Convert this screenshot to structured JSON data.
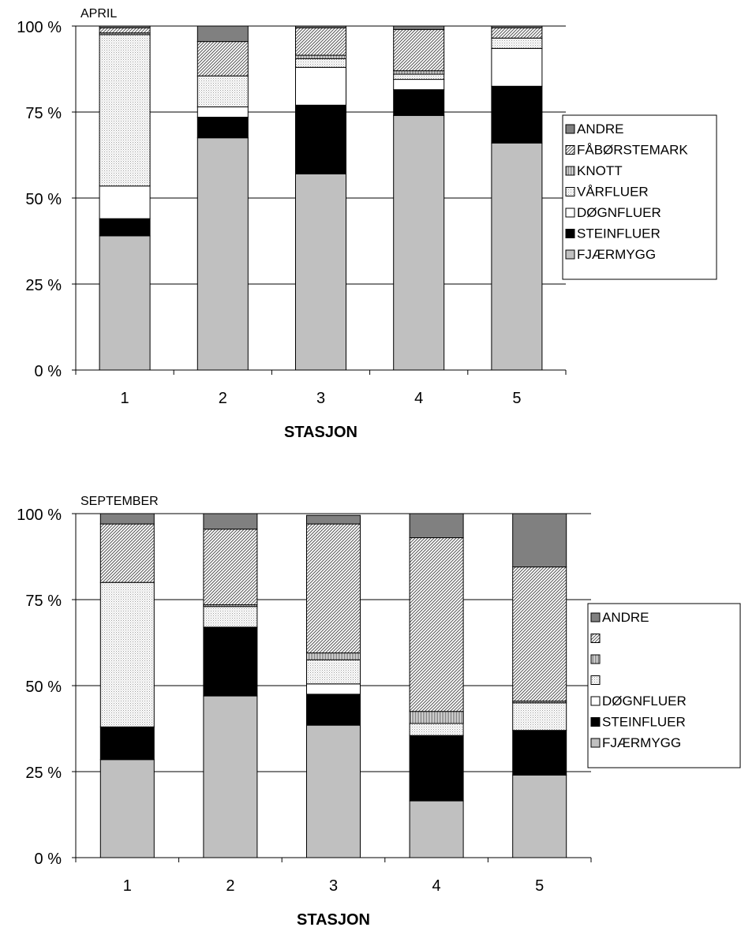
{
  "chart_data": [
    {
      "type": "bar",
      "stacked": true,
      "percent": true,
      "title": "APRIL",
      "xlabel": "STASJON",
      "ylabel": "",
      "categories": [
        "1",
        "2",
        "3",
        "4",
        "5"
      ],
      "ylim": [
        0,
        100
      ],
      "yticks": [
        "0 %",
        "25 %",
        "50 %",
        "75 %",
        "100 %"
      ],
      "grid": true,
      "legend": "right",
      "series": [
        {
          "name": "FJÆRMYGG",
          "pattern": "grey",
          "values": [
            39,
            67.5,
            57,
            74,
            66
          ]
        },
        {
          "name": "STEINFLUER",
          "pattern": "black",
          "values": [
            5,
            6,
            20,
            7.5,
            16.5
          ]
        },
        {
          "name": "DØGNFLUER",
          "pattern": "white",
          "values": [
            9.5,
            3,
            11,
            3,
            11
          ]
        },
        {
          "name": "VÅRFLUER",
          "pattern": "dots",
          "values": [
            44,
            9,
            2.5,
            1.5,
            3
          ]
        },
        {
          "name": "KNOTT",
          "pattern": "vlines",
          "values": [
            0.5,
            0,
            1,
            1,
            0
          ]
        },
        {
          "name": "FÅBØRSTEMARK",
          "pattern": "diag",
          "values": [
            1.5,
            10,
            8,
            12,
            3
          ]
        },
        {
          "name": "ANDRE",
          "pattern": "dark",
          "values": [
            0.5,
            4.5,
            0.5,
            1,
            0.5
          ]
        }
      ]
    },
    {
      "type": "bar",
      "stacked": true,
      "percent": true,
      "title": "SEPTEMBER",
      "xlabel": "STASJON",
      "ylabel": "",
      "categories": [
        "1",
        "2",
        "3",
        "4",
        "5"
      ],
      "ylim": [
        0,
        100
      ],
      "yticks": [
        "0 %",
        "25 %",
        "50 %",
        "75 %",
        "100 %"
      ],
      "grid": true,
      "legend": "right",
      "series": [
        {
          "name": "FJÆRMYGG",
          "pattern": "grey",
          "values": [
            28.5,
            47,
            38.5,
            16.5,
            24
          ]
        },
        {
          "name": "STEINFLUER",
          "pattern": "black",
          "values": [
            9.5,
            20,
            9,
            19,
            13
          ]
        },
        {
          "name": "DØGNFLUER",
          "pattern": "white",
          "values": [
            0,
            0,
            3,
            0,
            0
          ]
        },
        {
          "name": "",
          "pattern": "dots",
          "values": [
            42,
            6,
            7,
            3.5,
            8
          ]
        },
        {
          "name": "",
          "pattern": "vlines",
          "values": [
            0,
            0.5,
            2,
            3.5,
            0.5
          ]
        },
        {
          "name": "",
          "pattern": "diag",
          "values": [
            17,
            22,
            37.5,
            50.5,
            39
          ]
        },
        {
          "name": "ANDRE",
          "pattern": "dark",
          "values": [
            3,
            4.5,
            2.5,
            7,
            15.5
          ]
        }
      ]
    }
  ]
}
